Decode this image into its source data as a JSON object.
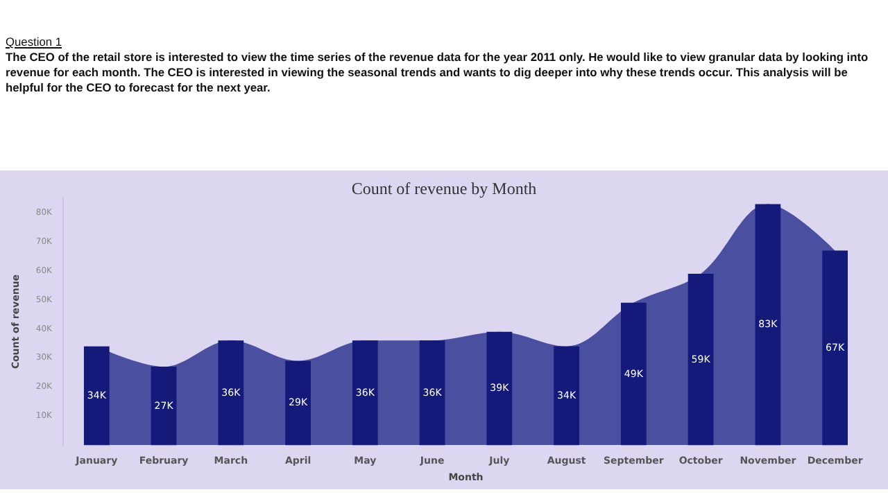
{
  "chart_data": {
    "type": "bar",
    "title": "Count of revenue by Month",
    "annotations": [
      "Question 1",
      "The CEO of the retail store is interested to view the time series of the revenue data for the year 2011 only. He would like to view granular data by looking into revenue for each month. The CEO is interested in viewing the seasonal trends and wants to dig deeper into why these trends occur. This analysis will be helpful for the CEO to forecast for the next year."
    ],
    "xlabel": "Month",
    "ylabel": "Count of revenue",
    "categories": [
      "January",
      "February",
      "March",
      "April",
      "May",
      "June",
      "July",
      "August",
      "September",
      "October",
      "November",
      "December"
    ],
    "series": [
      {
        "type": "area",
        "color": "#4b4fa0",
        "values": [
          34000,
          27000,
          36000,
          29000,
          36000,
          36000,
          39000,
          34000,
          49000,
          59000,
          83000,
          67000
        ]
      },
      {
        "color": "#141a7a",
        "values": [
          34000,
          27000,
          36000,
          29000,
          36000,
          36000,
          39000,
          34000,
          49000,
          59000,
          83000,
          67000
        ],
        "value_labels": [
          "34K",
          "27K",
          "36K",
          "29K",
          "36K",
          "36K",
          "39K",
          "34K",
          "49K",
          "59K",
          "83K",
          "67K"
        ]
      }
    ],
    "ylim": [
      0,
      85000
    ],
    "yticks": [
      {
        "value": 10000,
        "label": "10K"
      },
      {
        "value": 20000,
        "label": "20K"
      },
      {
        "value": 30000,
        "label": "30K"
      },
      {
        "value": 40000,
        "label": "40K"
      },
      {
        "value": 50000,
        "label": "50K"
      },
      {
        "value": 60000,
        "label": "60K"
      },
      {
        "value": 70000,
        "label": "70K"
      },
      {
        "value": 80000,
        "label": "80K"
      }
    ],
    "grid": false
  }
}
